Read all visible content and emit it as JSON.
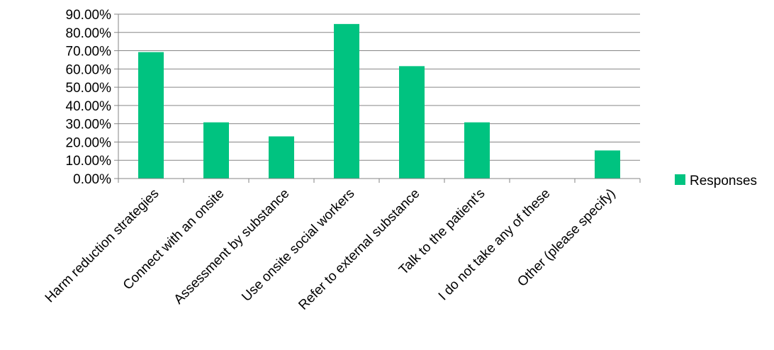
{
  "chart_data": {
    "type": "bar",
    "categories": [
      "Harm reduction strategies",
      "Connect with an onsite",
      "Assessment by substance",
      "Use onsite social workers",
      "Refer to external substance",
      "Talk to the patient's",
      "I do not take any of these",
      "Other (please specify)"
    ],
    "series": [
      {
        "name": "Responses",
        "values": [
          0.6923,
          0.3077,
          0.2308,
          0.8462,
          0.6154,
          0.3077,
          0.0,
          0.1538
        ]
      }
    ],
    "ylim": [
      0,
      0.9
    ],
    "yticks": [
      "0.00%",
      "10.00%",
      "20.00%",
      "30.00%",
      "40.00%",
      "50.00%",
      "60.00%",
      "70.00%",
      "80.00%",
      "90.00%"
    ],
    "grid": true,
    "legend_position": "right",
    "colors": {
      "bar": "#00C380",
      "grid": "#868686",
      "axis": "#868686"
    }
  }
}
